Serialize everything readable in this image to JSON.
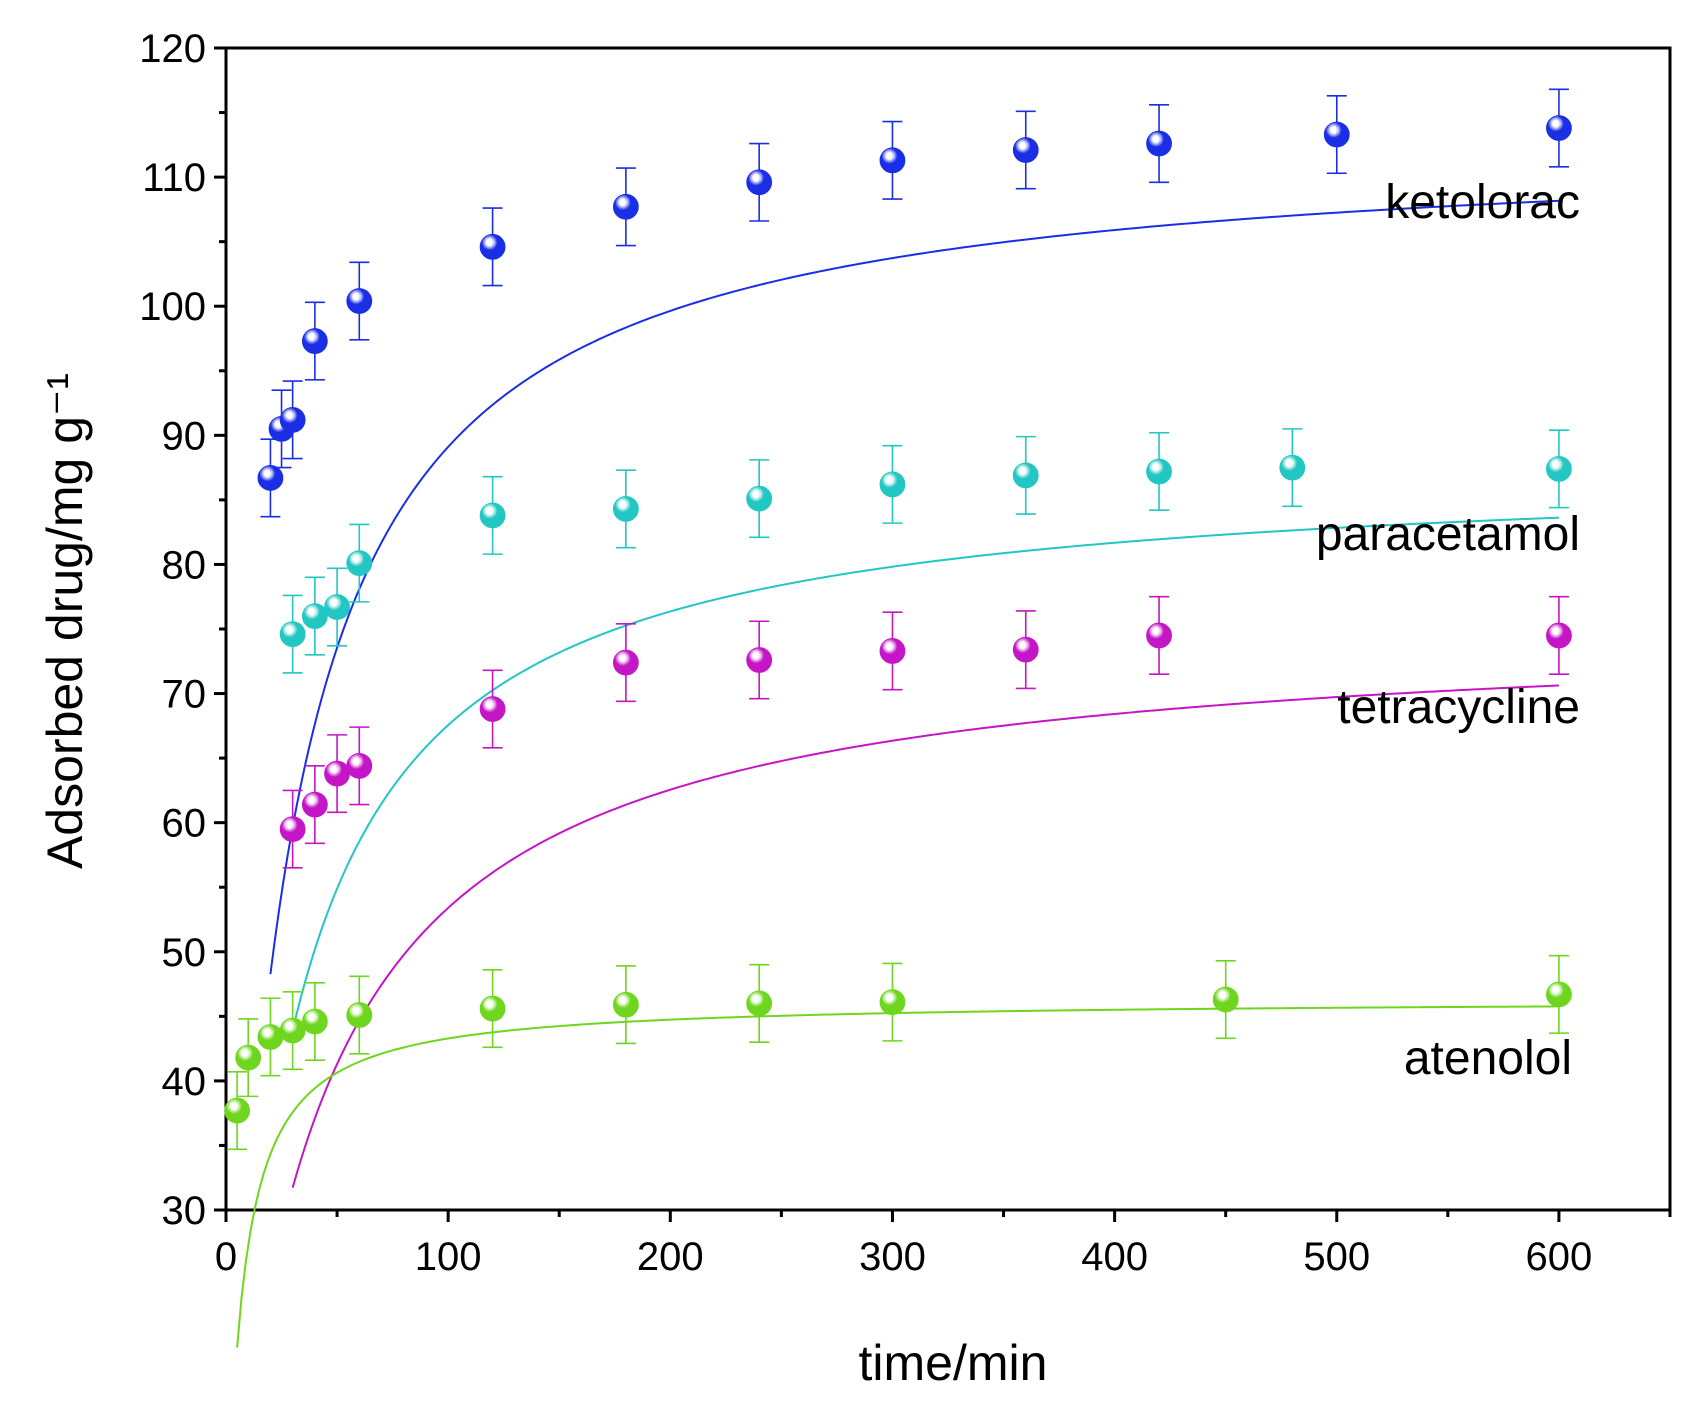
{
  "chart_data": {
    "type": "scatter",
    "xlabel": "time/min",
    "ylabel": "Adsorbed drug/mg g⁻¹",
    "xlim": [
      0,
      650
    ],
    "ylim": [
      30,
      120
    ],
    "x_major_ticks": [
      0,
      100,
      200,
      300,
      400,
      500,
      600
    ],
    "x_minor_ticks": [
      50,
      150,
      250,
      350,
      450,
      550,
      650
    ],
    "y_major_ticks": [
      30,
      40,
      50,
      60,
      70,
      80,
      90,
      100,
      110,
      120
    ],
    "y_minor_ticks": [
      35,
      45,
      55,
      65,
      75,
      85,
      95,
      105,
      115
    ],
    "error_bar": 3,
    "series": [
      {
        "name": "ketolorac",
        "color": "#1a2ee6",
        "x": [
          20,
          25,
          30,
          40,
          60,
          120,
          180,
          240,
          300,
          360,
          420,
          500,
          600
        ],
        "y": [
          86.7,
          90.5,
          91.2,
          97.3,
          100.4,
          104.6,
          107.7,
          109.6,
          111.3,
          112.1,
          112.6,
          113.3,
          113.8
        ],
        "fit": {
          "qe": 113.0,
          "k": 0.00033,
          "x_from": 20,
          "x_to": 600
        }
      },
      {
        "name": "paracetamol",
        "color": "#22c6c2",
        "x": [
          30,
          40,
          50,
          60,
          120,
          180,
          240,
          300,
          360,
          420,
          480,
          600
        ],
        "y": [
          74.6,
          76.0,
          76.7,
          80.1,
          83.8,
          84.3,
          85.1,
          86.2,
          86.9,
          87.2,
          87.5,
          87.4
        ],
        "fit": {
          "qe": 87.8,
          "k": 0.00038,
          "x_from": 30,
          "x_to": 600
        }
      },
      {
        "name": "tetracycline",
        "color": "#c415c6",
        "x": [
          30,
          40,
          50,
          60,
          120,
          180,
          240,
          300,
          360,
          420,
          600
        ],
        "y": [
          59.5,
          61.4,
          63.8,
          64.4,
          68.8,
          72.4,
          72.6,
          73.3,
          73.4,
          74.5,
          74.5
        ],
        "fit": {
          "qe": 75.5,
          "k": 0.00032,
          "x_from": 30,
          "x_to": 600
        }
      },
      {
        "name": "atenolol",
        "color": "#6ed61e",
        "x": [
          5,
          10,
          20,
          30,
          40,
          60,
          120,
          180,
          240,
          300,
          450,
          600
        ],
        "y": [
          37.7,
          41.8,
          43.4,
          43.9,
          44.6,
          45.1,
          45.6,
          45.9,
          46.0,
          46.1,
          46.3,
          46.7
        ],
        "fit": {
          "qe": 46.3,
          "k": 0.0031,
          "x_from": 5,
          "x_to": 600
        }
      }
    ]
  }
}
